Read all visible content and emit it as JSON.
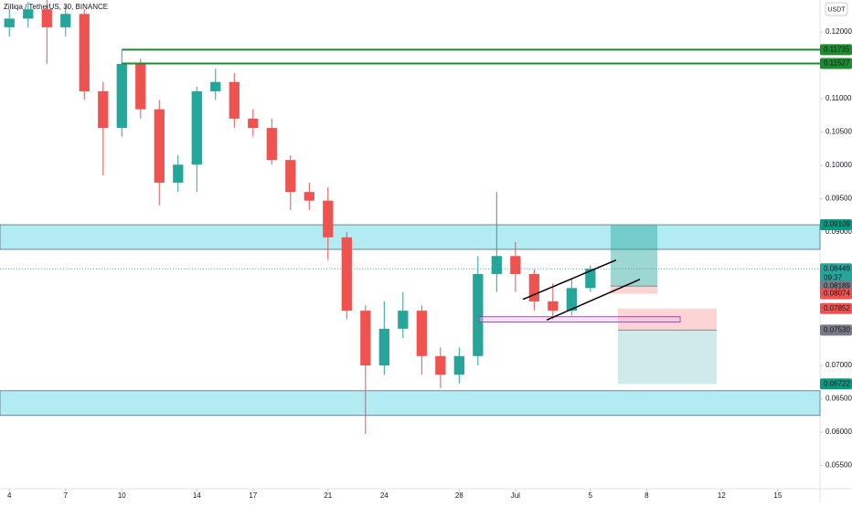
{
  "chart_data": {
    "type": "candlestick",
    "title": "Zilliqa / TetherUS, 30, BINANCE",
    "currency": "USDT",
    "up_color": "#26a69a",
    "down_color": "#ef5350",
    "open": [
      0.1207,
      0.122,
      0.1234,
      0.1207,
      0.1227,
      0.1111,
      0.1056,
      0.1152,
      0.1084,
      0.0974,
      0.1001,
      0.1111,
      0.1125,
      0.107,
      0.1056,
      0.1008,
      0.096,
      0.0947,
      0.0892,
      0.0782,
      0.07,
      0.0755,
      0.0782,
      0.0714,
      0.0686,
      0.0714,
      0.0837,
      0.0864,
      0.0837,
      0.0796,
      0.0782,
      0.0816
    ],
    "high": [
      0.1234,
      0.1245,
      0.1248,
      0.124,
      0.1234,
      0.1125,
      0.1173,
      0.116,
      0.1098,
      0.1015,
      0.1118,
      0.1145,
      0.1138,
      0.1084,
      0.107,
      0.1015,
      0.0974,
      0.0967,
      0.09,
      0.079,
      0.0796,
      0.081,
      0.079,
      0.0727,
      0.0727,
      0.0864,
      0.096,
      0.0885,
      0.0844,
      0.0823,
      0.083,
      0.085
    ],
    "low": [
      0.1193,
      0.1207,
      0.1152,
      0.1193,
      0.1098,
      0.0985,
      0.1043,
      0.107,
      0.094,
      0.096,
      0.096,
      0.1098,
      0.1056,
      0.1043,
      0.1001,
      0.0933,
      0.0933,
      0.0858,
      0.0769,
      0.0597,
      0.0686,
      0.0741,
      0.0686,
      0.0666,
      0.0673,
      0.07,
      0.081,
      0.081,
      0.0782,
      0.0769,
      0.0775,
      0.081
    ],
    "close": [
      0.122,
      0.1234,
      0.1207,
      0.1227,
      0.1111,
      0.1056,
      0.1152,
      0.1084,
      0.0974,
      0.1001,
      0.1111,
      0.1125,
      0.107,
      0.1056,
      0.1008,
      0.096,
      0.0947,
      0.0892,
      0.0782,
      0.07,
      0.0755,
      0.0782,
      0.0714,
      0.0686,
      0.0714,
      0.0837,
      0.0864,
      0.0837,
      0.0796,
      0.0782,
      0.0816,
      0.08449
    ],
    "xlim": [
      -0.5,
      43.25
    ],
    "ylim": [
      0.05151,
      0.12479
    ],
    "xticks": [
      {
        "value": 0,
        "label": "4"
      },
      {
        "value": 3,
        "label": "7"
      },
      {
        "value": 6,
        "label": "10"
      },
      {
        "value": 10,
        "label": "14"
      },
      {
        "value": 13,
        "label": "17"
      },
      {
        "value": 17,
        "label": "21"
      },
      {
        "value": 20,
        "label": "24"
      },
      {
        "value": 24,
        "label": "28"
      },
      {
        "value": 27,
        "label": "Jul"
      },
      {
        "value": 31,
        "label": "5"
      },
      {
        "value": 34,
        "label": "8"
      },
      {
        "value": 38,
        "label": "12"
      },
      {
        "value": 41,
        "label": "15"
      }
    ],
    "yticks": [
      {
        "value": 0.12,
        "label": "0.12000"
      },
      {
        "value": 0.11,
        "label": "0.11000"
      },
      {
        "value": 0.105,
        "label": "0.10500"
      },
      {
        "value": 0.1,
        "label": "0.10000"
      },
      {
        "value": 0.095,
        "label": "0.09500"
      },
      {
        "value": 0.09,
        "label": "0.09000"
      },
      {
        "value": 0.07,
        "label": "0.07000"
      },
      {
        "value": 0.065,
        "label": "0.06500"
      },
      {
        "value": 0.06,
        "label": "0.06000"
      },
      {
        "value": 0.055,
        "label": "0.05500"
      }
    ],
    "grid": false,
    "levels": [
      {
        "value": 0.11735,
        "label": "0.11735",
        "start": 6,
        "color": "#1e8c2e"
      },
      {
        "value": 0.11527,
        "label": "0.11527",
        "start": 6,
        "color": "#1e8c2e"
      }
    ],
    "zones": [
      {
        "top": 0.09109,
        "bottom": 0.0874,
        "label": "0.09109"
      },
      {
        "top": 0.0662,
        "bottom": 0.0625
      }
    ],
    "last_price": {
      "value": 0.08449,
      "label": "0.08449",
      "countdown": "09:37"
    },
    "long_position": {
      "start": 32.08,
      "end": 34.57,
      "target": 0.091,
      "entry": 0.08189,
      "stop": 0.08074,
      "entry_label": "0.08189",
      "stop_label": "0.08074"
    },
    "short_position": {
      "start": 32.47,
      "end": 37.74,
      "stop": 0.07852,
      "entry": 0.0753,
      "target": 0.06722,
      "stop_label": "0.07852",
      "entry_label": "0.07530",
      "target_label": "0.06722"
    },
    "rectangle": {
      "start": 25.06,
      "end": 35.79,
      "top": 0.0773,
      "bottom": 0.0765
    },
    "trendlines": [
      {
        "x": [
          27.4,
          32.37
        ],
        "y": [
          0.0799,
          0.0858
        ]
      },
      {
        "x": [
          28.67,
          33.64
        ],
        "y": [
          0.0768,
          0.0829
        ]
      }
    ]
  }
}
